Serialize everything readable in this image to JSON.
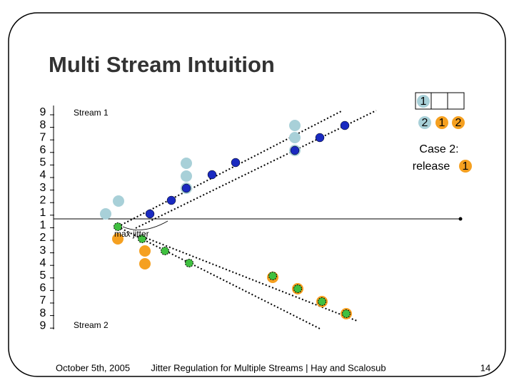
{
  "title": "Multi Stream Intuition",
  "axis_labels": [
    "9",
    "8",
    "7",
    "6",
    "5",
    "4",
    "3",
    "2",
    "1",
    "1",
    "2",
    "3",
    "4",
    "5",
    "6",
    "7",
    "8",
    "9"
  ],
  "stream_labels": [
    "Stream 1",
    "Stream 2"
  ],
  "annotation": "max jitter",
  "buffer": {
    "top": [
      "1"
    ],
    "bottom": [
      "2",
      "1",
      "2"
    ]
  },
  "case": {
    "heading": "Case 2:",
    "action": "release",
    "item": "1"
  },
  "footer": {
    "date": "October 5th, 2005",
    "center": "Jitter Regulation for Multiple Streams | Hay and Scalosub",
    "page": "14"
  }
}
